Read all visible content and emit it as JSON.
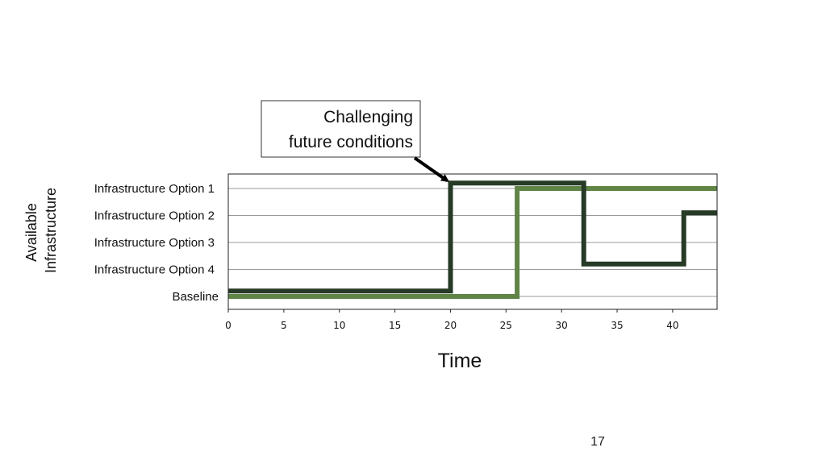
{
  "page_number": "17",
  "colors": {
    "series_dark": "#263a26",
    "series_light": "#5f8446",
    "grid": "#9a9a9a",
    "axis": "#222222"
  },
  "chart_data": {
    "type": "line",
    "step": true,
    "title": "",
    "xlabel": "Time",
    "ylabel_lines": [
      "Available",
      "Infrastructure"
    ],
    "xlim": [
      0,
      44
    ],
    "xticks": [
      0,
      5,
      10,
      15,
      20,
      25,
      30,
      35,
      40
    ],
    "categories": [
      "Baseline",
      "Infrastructure Option 4",
      "Infrastructure Option 3",
      "Infrastructure Option 2",
      "Infrastructure Option 1"
    ],
    "grid": "horizontal",
    "legend": "none",
    "series": [
      {
        "color": "#263a26",
        "x": [
          0,
          20,
          20,
          32,
          32,
          41,
          41,
          44
        ],
        "y": [
          0.2,
          0.2,
          4.2,
          4.2,
          1.2,
          1.2,
          3.1,
          3.1
        ]
      },
      {
        "color": "#5f8446",
        "x": [
          0,
          26,
          26,
          44
        ],
        "y": [
          0,
          0,
          4,
          4
        ]
      }
    ],
    "annotations": [
      {
        "text_lines": [
          "Challenging",
          "future conditions"
        ],
        "arrow_to": {
          "x": 20,
          "y": 4.2
        }
      }
    ]
  }
}
